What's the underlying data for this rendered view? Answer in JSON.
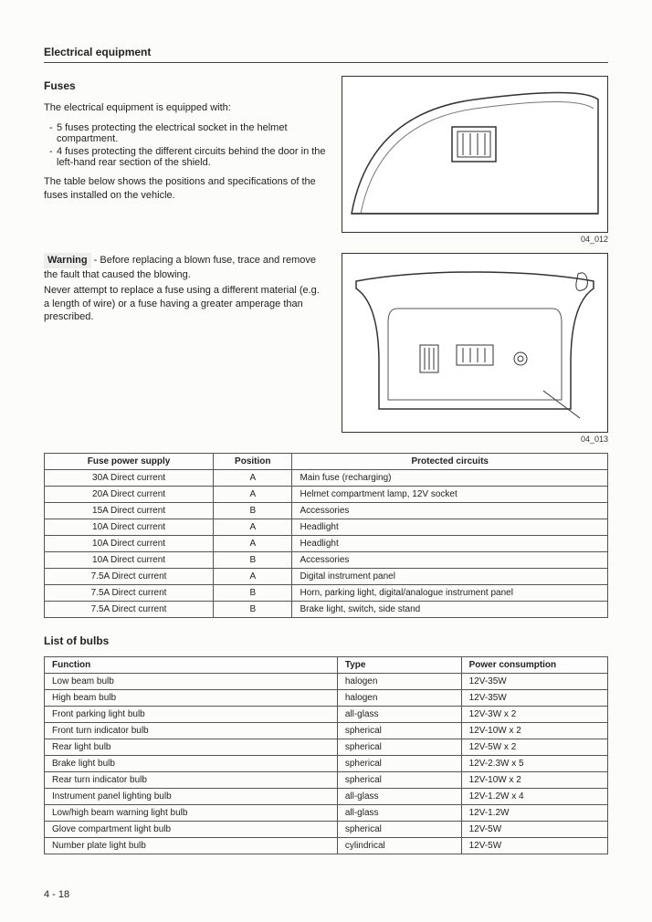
{
  "header": {
    "title": "Electrical equipment"
  },
  "fuses": {
    "heading": "Fuses",
    "intro": "The electrical equipment is equipped with:",
    "items": [
      "5 fuses protecting the electrical socket in the helmet compartment.",
      "4 fuses protecting the different circuits behind the door in the left-hand rear section of the shield."
    ],
    "note": "The table below shows the positions and specifications of the fuses installed on the vehicle."
  },
  "figure1": {
    "caption": "04_012"
  },
  "warning": {
    "label": "Warning",
    "text": " - Before replacing a blown fuse, trace and remove the fault that caused the blowing.",
    "text2": "Never attempt to replace a fuse using a different material (e.g. a length of wire) or a fuse having a greater amperage than prescribed."
  },
  "figure2": {
    "caption": "04_013"
  },
  "fuse_table": {
    "columns": [
      "Fuse power supply",
      "Position",
      "Protected circuits"
    ],
    "rows": [
      [
        "30A Direct current",
        "A",
        "Main fuse (recharging)"
      ],
      [
        "20A Direct current",
        "A",
        "Helmet compartment lamp, 12V socket"
      ],
      [
        "15A Direct current",
        "B",
        "Accessories"
      ],
      [
        "10A Direct current",
        "A",
        "Headlight"
      ],
      [
        "10A Direct current",
        "A",
        "Headlight"
      ],
      [
        "10A Direct current",
        "B",
        "Accessories"
      ],
      [
        "7.5A Direct current",
        "A",
        "Digital instrument panel"
      ],
      [
        "7.5A Direct current",
        "B",
        "Horn, parking light, digital/analogue instrument panel"
      ],
      [
        "7.5A Direct current",
        "B",
        "Brake light, switch, side stand"
      ]
    ]
  },
  "bulbs": {
    "heading": "List of bulbs",
    "columns": [
      "Function",
      "Type",
      "Power consumption"
    ],
    "rows": [
      [
        "Low beam bulb",
        "halogen",
        "12V-35W"
      ],
      [
        "High beam bulb",
        "halogen",
        "12V-35W"
      ],
      [
        "Front parking light bulb",
        "all-glass",
        "12V-3W x 2"
      ],
      [
        "Front turn indicator bulb",
        "spherical",
        "12V-10W x 2"
      ],
      [
        "Rear light bulb",
        "spherical",
        "12V-5W x 2"
      ],
      [
        "Brake light bulb",
        "spherical",
        "12V-2.3W x 5"
      ],
      [
        "Rear turn indicator bulb",
        "spherical",
        "12V-10W x 2"
      ],
      [
        "Instrument panel lighting bulb",
        "all-glass",
        "12V-1.2W x 4"
      ],
      [
        "Low/high beam warning light bulb",
        "all-glass",
        "12V-1.2W"
      ],
      [
        "Glove compartment light bulb",
        "spherical",
        "12V-5W"
      ],
      [
        "Number plate light bulb",
        "cylindrical",
        "12V-5W"
      ]
    ]
  },
  "page_number": "4 - 18"
}
